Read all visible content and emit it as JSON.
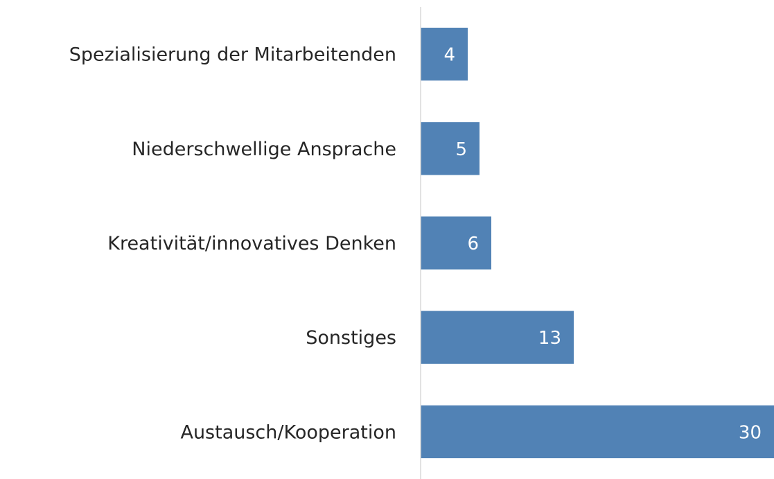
{
  "chart_data": {
    "type": "hbar",
    "categories": [
      "Spezialisierung der Mitarbeitenden",
      "Niederschwellige Ansprache",
      "Kreativität/innovatives Denken",
      "Sonstiges",
      "Austausch/Kooperation"
    ],
    "values": [
      4,
      5,
      6,
      13,
      30
    ],
    "color": "#5182b5",
    "xlim": [
      0,
      30
    ],
    "grid": false
  }
}
